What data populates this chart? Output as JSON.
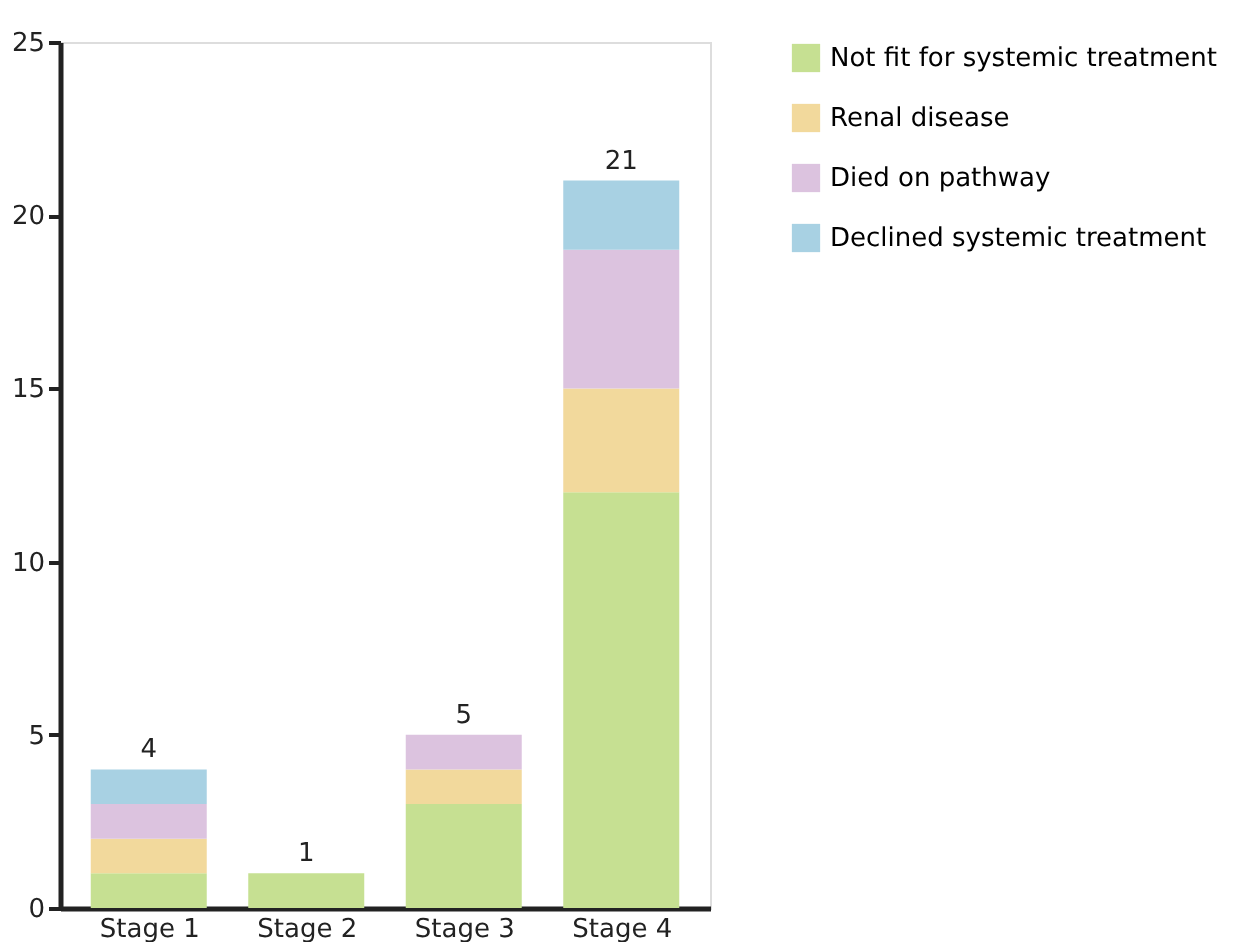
{
  "chart_data": {
    "type": "bar",
    "stacked": true,
    "categories": [
      "Stage 1",
      "Stage 2",
      "Stage 3",
      "Stage 4"
    ],
    "series": [
      {
        "name": "Not fit for systemic treatment",
        "color": "#c6e092",
        "values": [
          1,
          1,
          3,
          12
        ]
      },
      {
        "name": "Renal disease",
        "color": "#f2d99c",
        "values": [
          1,
          null,
          1,
          3
        ]
      },
      {
        "name": "Died on pathway",
        "color": "#dcc3df",
        "values": [
          1,
          null,
          1,
          4
        ]
      },
      {
        "name": "Declined systemic treatment",
        "color": "#a8d1e3",
        "values": [
          1,
          null,
          null,
          2
        ]
      }
    ],
    "totals": [
      "4",
      "1",
      "5",
      "21"
    ],
    "ylim": [
      0,
      25
    ],
    "yticks": [
      0,
      5,
      10,
      15,
      20,
      25
    ],
    "grid": false,
    "legend": "right"
  }
}
